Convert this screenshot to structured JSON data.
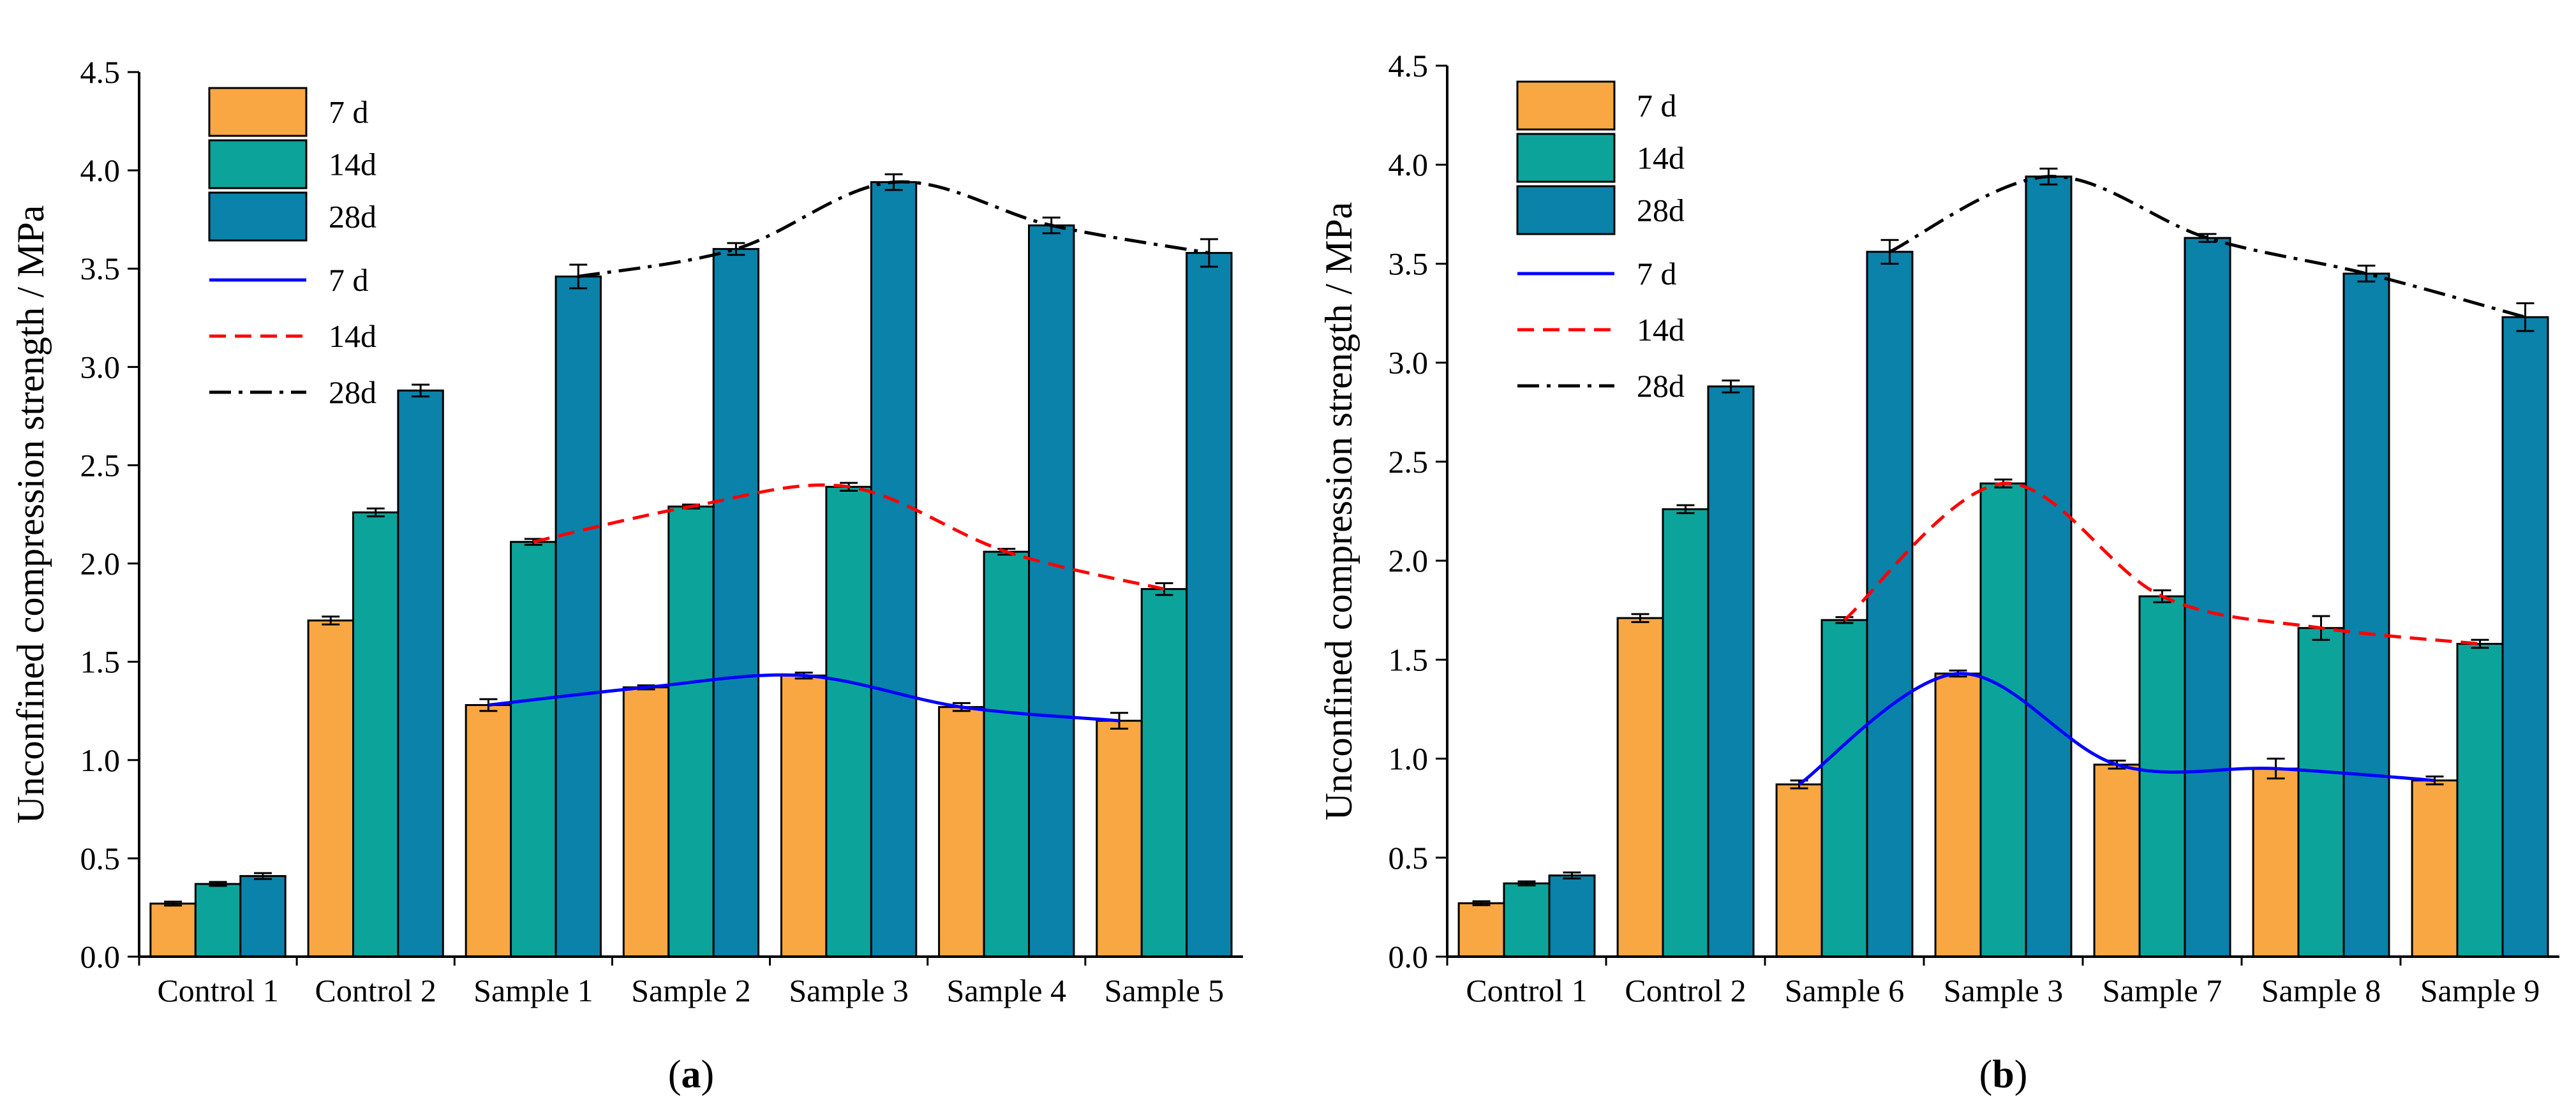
{
  "chart_data": [
    {
      "type": "bar",
      "panel_label": "a",
      "categories": [
        "Control 1",
        "Control 2",
        "Sample 1",
        "Sample 2",
        "Sample 3",
        "Sample 4",
        "Sample 5"
      ],
      "series": [
        {
          "name": "7 d",
          "color": "#F9A743",
          "values": [
            0.27,
            1.71,
            1.28,
            1.37,
            1.43,
            1.27,
            1.2
          ],
          "errors": [
            0.01,
            0.02,
            0.03,
            0.01,
            0.015,
            0.02,
            0.04
          ]
        },
        {
          "name": "14d",
          "color": "#0CA49A",
          "values": [
            0.37,
            2.26,
            2.11,
            2.29,
            2.39,
            2.06,
            1.87
          ],
          "errors": [
            0.01,
            0.02,
            0.015,
            0.01,
            0.02,
            0.015,
            0.03
          ]
        },
        {
          "name": "28d",
          "color": "#0A82AA",
          "values": [
            0.41,
            2.88,
            3.46,
            3.6,
            3.94,
            3.72,
            3.58
          ],
          "errors": [
            0.015,
            0.03,
            0.06,
            0.03,
            0.04,
            0.04,
            0.07
          ]
        }
      ],
      "trend_lines": [
        {
          "name": "7 d",
          "style": "solid",
          "color": "#0000FF",
          "series": "7 d"
        },
        {
          "name": "14d",
          "style": "dashed",
          "color": "#FF0000",
          "series": "14d"
        },
        {
          "name": "28d",
          "style": "dash-dot",
          "color": "#000000",
          "series": "28d"
        }
      ],
      "trend_start_index": 2,
      "ylabel": "Unconfined compression strength / MPa",
      "xlabel": "",
      "ylim": [
        0,
        4.5
      ],
      "yticks": [
        "0.0",
        "0.5",
        "1.0",
        "1.5",
        "2.0",
        "2.5",
        "3.0",
        "3.5",
        "4.0",
        "4.5"
      ],
      "legend_position": "top-left",
      "grid": false
    },
    {
      "type": "bar",
      "panel_label": "b",
      "categories": [
        "Control 1",
        "Control 2",
        "Sample 6",
        "Sample 3",
        "Sample 7",
        "Sample 8",
        "Sample 9"
      ],
      "series": [
        {
          "name": "7 d",
          "color": "#F9A743",
          "values": [
            0.27,
            1.71,
            0.87,
            1.43,
            0.97,
            0.95,
            0.89
          ],
          "errors": [
            0.01,
            0.02,
            0.02,
            0.015,
            0.02,
            0.05,
            0.02
          ]
        },
        {
          "name": "14d",
          "color": "#0CA49A",
          "values": [
            0.37,
            2.26,
            1.7,
            2.39,
            1.82,
            1.66,
            1.58
          ],
          "errors": [
            0.01,
            0.02,
            0.015,
            0.02,
            0.03,
            0.06,
            0.02
          ]
        },
        {
          "name": "28d",
          "color": "#0A82AA",
          "values": [
            0.41,
            2.88,
            3.56,
            3.94,
            3.63,
            3.45,
            3.23
          ],
          "errors": [
            0.015,
            0.03,
            0.06,
            0.04,
            0.02,
            0.04,
            0.07
          ]
        }
      ],
      "trend_lines": [
        {
          "name": "7 d",
          "style": "solid",
          "color": "#0000FF",
          "series": "7 d"
        },
        {
          "name": "14d",
          "style": "dashed",
          "color": "#FF0000",
          "series": "14d"
        },
        {
          "name": "28d",
          "style": "dash-dot",
          "color": "#000000",
          "series": "28d"
        }
      ],
      "trend_start_index": 2,
      "ylabel": "Unconfined compression strength / MPa",
      "xlabel": "",
      "ylim": [
        0,
        4.5
      ],
      "yticks": [
        "0.0",
        "0.5",
        "1.0",
        "1.5",
        "2.0",
        "2.5",
        "3.0",
        "3.5",
        "4.0",
        "4.5"
      ],
      "legend_position": "top-left",
      "grid": false
    }
  ]
}
